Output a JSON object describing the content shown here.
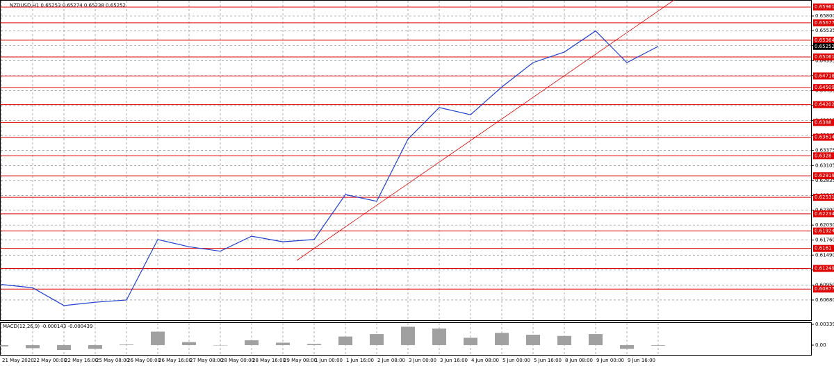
{
  "chart_data": [
    {
      "type": "line",
      "title": "NZDUSD,H1  0.65253 0.65274 0.65238 0.65252",
      "categories": [
        "21 May 2020",
        "22 May 00:00",
        "22 May 16:00",
        "25 May 08:00",
        "26 May 00:00",
        "26 May 16:00",
        "27 May 08:00",
        "28 May 00:00",
        "28 May 16:00",
        "29 May 08:00",
        "1 Jun 00:00",
        "1 Jun 16:00",
        "2 Jun 08:00",
        "3 Jun 00:00",
        "3 Jun 16:00",
        "4 Jun 08:00",
        "5 Jun 00:00",
        "5 Jun 16:00",
        "8 Jun 08:00",
        "9 Jun 00:00",
        "9 Jun 16:00",
        null
      ],
      "values": [
        0.6096,
        0.609,
        0.6058,
        0.6064,
        0.6068,
        0.6177,
        0.6164,
        0.6156,
        0.6183,
        0.6173,
        0.6177,
        0.6258,
        0.6246,
        0.6358,
        0.6415,
        0.6402,
        0.6452,
        0.6496,
        0.6515,
        0.6553,
        0.6496,
        0.65252
      ],
      "color": "#1f3fd0",
      "ylim": [
        0.60304,
        0.66088
      ],
      "yticks": [
        {
          "value": 0.658,
          "label": "0.65800"
        },
        {
          "value": 0.65535,
          "label": "0.65535"
        },
        {
          "value": 0.65265,
          "label": "0.65265"
        },
        {
          "value": 0.64995,
          "label": "0.64995"
        },
        {
          "value": 0.64725,
          "label": "0.64725"
        },
        {
          "value": 0.64455,
          "label": "0.64455"
        },
        {
          "value": 0.64185,
          "label": "0.64185"
        },
        {
          "value": 0.63915,
          "label": "0.63915"
        },
        {
          "value": 0.63645,
          "label": "0.63645"
        },
        {
          "value": 0.63375,
          "label": "0.63375"
        },
        {
          "value": 0.63105,
          "label": "0.63105"
        },
        {
          "value": 0.62835,
          "label": "0.62835"
        },
        {
          "value": 0.62565,
          "label": "0.62565"
        },
        {
          "value": 0.623,
          "label": "0.62300"
        },
        {
          "value": 0.6203,
          "label": "0.62030"
        },
        {
          "value": 0.6176,
          "label": "0.61760"
        },
        {
          "value": 0.6149,
          "label": "0.61490"
        },
        {
          "value": 0.6122,
          "label": "0.61220"
        },
        {
          "value": 0.6095,
          "label": "0.60950"
        },
        {
          "value": 0.6068,
          "label": "0.60680"
        }
      ],
      "levels": [
        0.65961,
        0.65677,
        0.65364,
        0.65061,
        0.64718,
        0.64509,
        0.64202,
        0.6388,
        0.63614,
        0.6328,
        0.62919,
        0.62531,
        0.62234,
        0.61924,
        0.6161,
        0.61249,
        0.60877
      ],
      "level_color": "#e00000",
      "current_price": 0.65252,
      "grid": true
    },
    {
      "type": "bar",
      "title": "MACD(12,26,9) -0.000143 -0.000439",
      "values": [
        -0.0002,
        -0.0005,
        -0.0008,
        -0.0006,
        0.0001,
        0.0022,
        0.0005,
        0.0,
        0.0008,
        0.0004,
        0.0002,
        0.0014,
        0.0018,
        0.003,
        0.0027,
        0.0012,
        0.002,
        0.0017,
        0.0015,
        0.0018,
        -0.0006,
        -0.0001
      ],
      "color": "#a0a0a0",
      "ylim": [
        -0.0017,
        0.00373
      ],
      "yticks": [
        0.003392,
        {
          "value": 0,
          "label": "0.00"
        }
      ]
    }
  ]
}
